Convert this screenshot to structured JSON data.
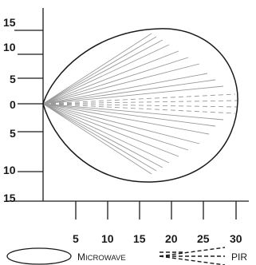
{
  "y_axis": {
    "labels": [
      "15",
      "10",
      "5",
      "0",
      "5",
      "10",
      "15"
    ]
  },
  "x_axis": {
    "labels": [
      "5",
      "10",
      "15",
      "20",
      "25",
      "30"
    ]
  },
  "legend": {
    "microwave_first": "M",
    "microwave_rest": "ICROWAVE",
    "pir": "PIR"
  },
  "colors": {
    "axis": "#1a1a1a",
    "microwave_outline": "#1a1a1a",
    "pir_rays": "#999999"
  }
}
